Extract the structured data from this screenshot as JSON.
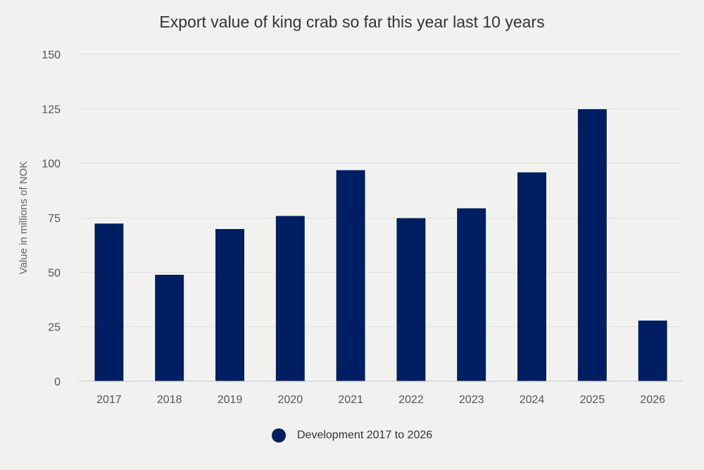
{
  "chart_data": {
    "type": "bar",
    "title": "Export value of king crab so far this year last 10 years",
    "xlabel": "",
    "ylabel": "Value in millions of NOK",
    "categories": [
      "2017",
      "2018",
      "2019",
      "2020",
      "2021",
      "2022",
      "2023",
      "2024",
      "2025",
      "2026"
    ],
    "series": [
      {
        "name": "Development 2017 to 2026",
        "color": "#001e62",
        "values": [
          72.5,
          49,
          70,
          76,
          97,
          75,
          79.5,
          96,
          125,
          28
        ]
      }
    ],
    "ylim": [
      0,
      150
    ],
    "yticks": [
      0,
      25,
      50,
      75,
      100,
      125,
      150
    ],
    "grid": true,
    "legend_position": "bottom-center"
  }
}
